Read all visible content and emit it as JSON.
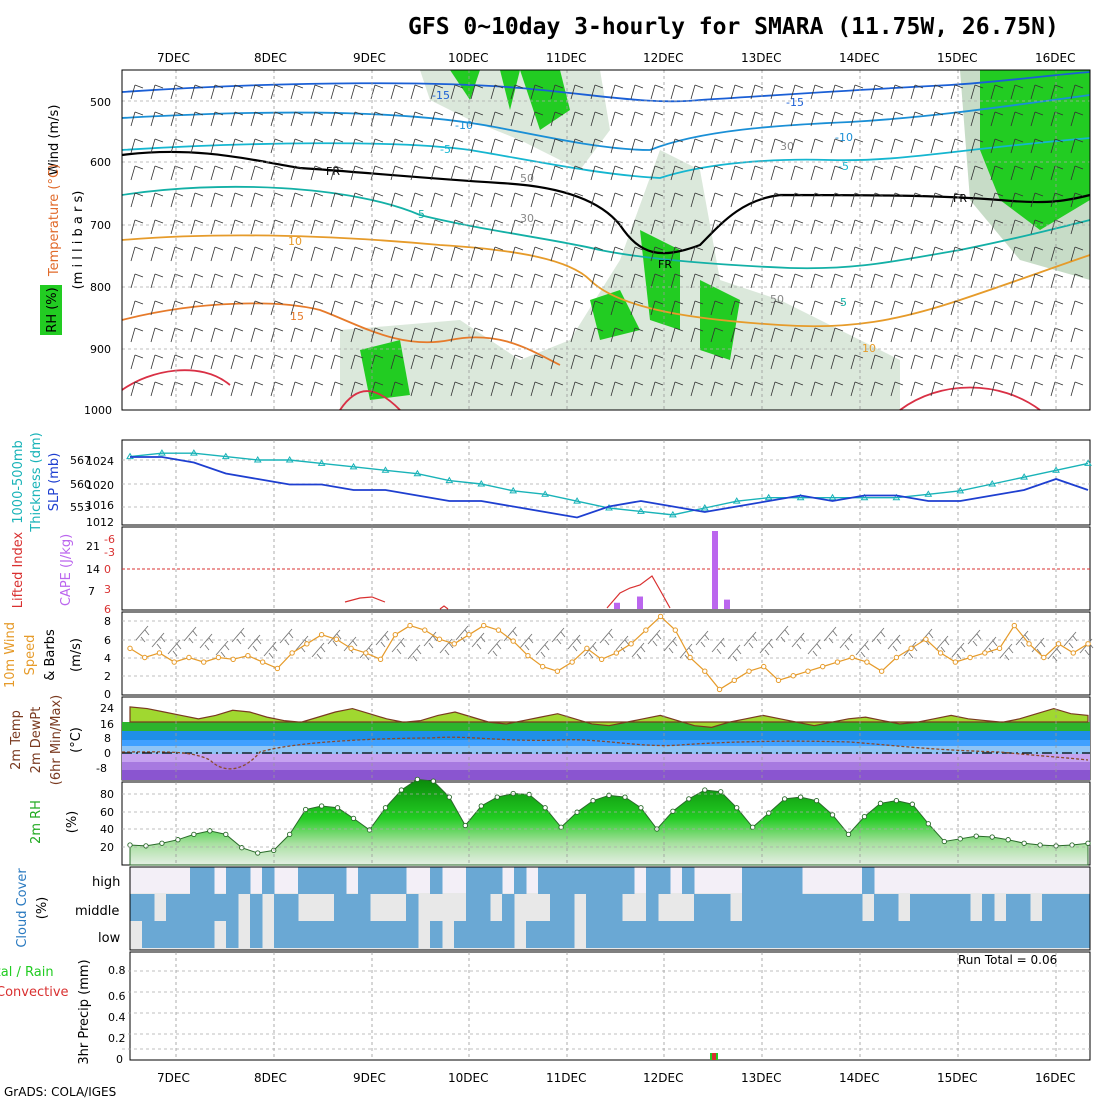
{
  "title": "GFS 0~10day 3-hourly for SMARA (11.75W, 26.75N)",
  "footer": "GrADS: COLA/IGES",
  "dates": [
    "7DEC",
    "8DEC",
    "9DEC",
    "10DEC",
    "11DEC",
    "12DEC",
    "13DEC",
    "14DEC",
    "15DEC",
    "16DEC"
  ],
  "colors": {
    "rh_green": "#22cc22",
    "rh_light": "#dbe8db",
    "temp_cold": "#1a5fd6",
    "temp_mid": "#13b0a6",
    "temp_warm": "#e69b2a",
    "temp_hot": "#d93045",
    "freezing": "#000000",
    "thickness": "#19b3b8",
    "slp": "#1e3fd0",
    "cape": "#bb66ee",
    "lifted_index": "#d93030",
    "wind": "#e69b2a",
    "cloud": "#6aa8d4",
    "cloud_bg": "#e8e8e8",
    "precip_total": "#22cc22",
    "precip_conv": "#d93030"
  },
  "panels": {
    "upper_air": {
      "ylabels": [
        "Wind (m/s)",
        "Temperature (°C)",
        "RH (%)"
      ],
      "ylabel_inner": "(m i l l i b a r s)",
      "yticks": [
        "500",
        "600",
        "700",
        "800",
        "900",
        "1000"
      ],
      "contour_labels": [
        "-15",
        "-10",
        "-5",
        "5",
        "10",
        "15",
        "FR",
        "FR",
        "FR",
        "30",
        "30",
        "50",
        "50",
        "-15",
        "-10",
        "-5",
        "5",
        "10"
      ]
    },
    "thickness": {
      "ylabels": [
        "1000-500mb",
        "Thickness (dm)",
        "SLP (mb)"
      ],
      "yticks_left": [
        "567",
        "560",
        "553"
      ],
      "yticks_right": [
        "1024",
        "1020",
        "1016",
        "1012"
      ]
    },
    "cape": {
      "ylabels": [
        "Lifted Index",
        "CAPE (J/kg)"
      ],
      "yticks_left": [
        "-6",
        "-3",
        "0",
        "3",
        "6"
      ],
      "yticks_right": [
        "21",
        "14",
        "7"
      ]
    },
    "wind10": {
      "ylabels": [
        "10m Wind",
        "Speed",
        "& Barbs",
        "(m/s)"
      ],
      "yticks": [
        "8",
        "6",
        "4",
        "2",
        "0"
      ]
    },
    "temp2m": {
      "ylabels": [
        "2m Temp",
        "2m DewPt",
        "(6hr Min/Max)",
        "(°C)"
      ],
      "yticks": [
        "24",
        "16",
        "8",
        "0",
        "-8"
      ]
    },
    "rh2m": {
      "ylabels": [
        "2m RH",
        "(%)"
      ],
      "yticks": [
        "80",
        "60",
        "40",
        "20"
      ]
    },
    "cloud": {
      "ylabels": [
        "Cloud Cover",
        "(%)"
      ],
      "levels": [
        "high",
        "middle",
        "low"
      ]
    },
    "precip": {
      "ylabels": [
        "Total / Rain",
        "Convective",
        "3hr Precip (mm)"
      ],
      "yticks": [
        "0.8",
        "0.6",
        "0.4",
        "0.2",
        "0"
      ],
      "run_total": "Run Total = 0.06"
    }
  },
  "chart_data": [
    {
      "type": "line",
      "title": "1000-500mb Thickness (dm) / SLP (mb)",
      "series": [
        {
          "name": "1000-500mb Thickness (dm)",
          "values": [
            568,
            569,
            569,
            568,
            567,
            567,
            566,
            565,
            564,
            563,
            561,
            560,
            558,
            557,
            555,
            553,
            552,
            551,
            553,
            555,
            556,
            556,
            556,
            556,
            556,
            557,
            558,
            560,
            562,
            564,
            566
          ]
        },
        {
          "name": "SLP (mb)",
          "values": [
            1024,
            1024,
            1023,
            1021,
            1020,
            1019,
            1019,
            1018,
            1018,
            1017,
            1016,
            1016,
            1015,
            1014,
            1013,
            1015,
            1016,
            1015,
            1014,
            1015,
            1016,
            1017,
            1016,
            1017,
            1017,
            1016,
            1016,
            1017,
            1018,
            1020,
            1018
          ]
        }
      ]
    },
    {
      "type": "bar",
      "title": "CAPE (J/kg)",
      "x": [
        "11.6",
        "11.9",
        "12.5",
        "12.6"
      ],
      "values": [
        2,
        4,
        25,
        3
      ]
    },
    {
      "type": "line",
      "title": "10m Wind Speed (m/s)",
      "values": [
        5,
        4,
        4.5,
        3.5,
        4,
        3.5,
        4,
        3.8,
        4.2,
        3.5,
        2.8,
        4.5,
        5.5,
        6.5,
        6,
        5,
        4.5,
        3.8,
        6.5,
        7.5,
        7,
        6,
        5.5,
        6.5,
        7.5,
        7,
        5.8,
        4.2,
        3,
        2.5,
        3.5,
        5,
        3.8,
        4.5,
        5.5,
        7,
        8.5,
        7,
        4,
        2.5,
        0.5,
        1.5,
        2.5,
        3,
        1.5,
        2,
        2.5,
        3,
        3.5,
        4,
        3.5,
        2.5,
        4,
        5,
        6,
        4.5,
        3.5,
        4,
        4.5,
        5,
        7.5,
        5.5,
        4,
        5.5,
        4.5,
        5.5
      ]
    },
    {
      "type": "area",
      "title": "2m Temp (°C)",
      "values": [
        27,
        26,
        24,
        22,
        20,
        22,
        25,
        24,
        21,
        19,
        18,
        21,
        24,
        26,
        23,
        20,
        18,
        19,
        22,
        24,
        21,
        18,
        17,
        19,
        21,
        23,
        20,
        17,
        16,
        18,
        20,
        22,
        19,
        16,
        15,
        18,
        20,
        22,
        20,
        18,
        16,
        18,
        20,
        21,
        19,
        17,
        18,
        20,
        22,
        20,
        19,
        18,
        20,
        23,
        26,
        23,
        22
      ]
    },
    {
      "type": "area",
      "title": "2m RH (%)",
      "values": [
        18,
        17,
        20,
        24,
        30,
        34,
        30,
        15,
        9,
        12,
        30,
        58,
        62,
        60,
        48,
        35,
        60,
        80,
        92,
        90,
        72,
        40,
        62,
        72,
        76,
        75,
        60,
        38,
        55,
        68,
        74,
        72,
        60,
        36,
        56,
        70,
        80,
        78,
        60,
        38,
        54,
        70,
        72,
        68,
        52,
        30,
        50,
        65,
        68,
        64,
        42,
        22,
        25,
        28,
        27,
        24,
        20,
        18,
        17,
        18,
        20
      ]
    }
  ]
}
